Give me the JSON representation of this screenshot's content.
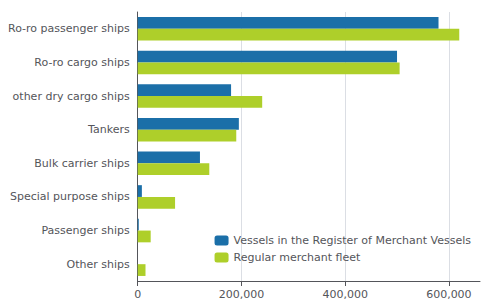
{
  "chart_data": {
    "type": "bar",
    "orientation": "horizontal",
    "categories": [
      "Other ships",
      "Passenger ships",
      "Special purpose ships",
      "Bulk carrier ships",
      "Tankers",
      "other dry cargo ships",
      "Ro-ro cargo ships",
      "Ro-ro passenger ships"
    ],
    "series": [
      {
        "name": "Vessels in the Register of Merchant Vessels",
        "color": "#1B6FA8",
        "values": [
          0,
          2000,
          8000,
          120000,
          195000,
          180000,
          500000,
          580000
        ]
      },
      {
        "name": "Regular merchant fleet",
        "color": "#AECF2A",
        "values": [
          15000,
          25000,
          72000,
          138000,
          190000,
          240000,
          505000,
          620000
        ]
      }
    ],
    "xlim": [
      0,
      660000
    ],
    "xticks": [
      0,
      {
        "value": 200000,
        "label": "200,000"
      },
      {
        "value": 400000,
        "label": "400,000"
      },
      {
        "value": 600000,
        "label": "600,000"
      }
    ],
    "grid": true,
    "legend": "lower right"
  }
}
